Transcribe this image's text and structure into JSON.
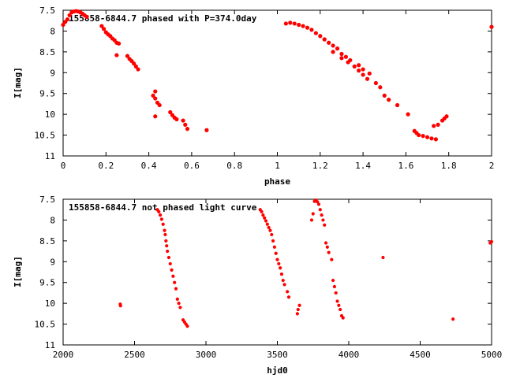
{
  "chart_data": [
    {
      "type": "scatter",
      "title": "155858-6844.7 phased with P=374.0day",
      "xlabel": "phase",
      "ylabel": "I[mag]",
      "xlim": [
        0,
        2
      ],
      "ylim": [
        7.5,
        11
      ],
      "y_inverted": true,
      "xticks": [
        "0",
        "0.2",
        "0.4",
        "0.6",
        "0.8",
        "1",
        "1.2",
        "1.4",
        "1.6",
        "1.8",
        "2"
      ],
      "yticks": [
        "7.5",
        "8",
        "8.5",
        "9",
        "9.5",
        "10",
        "10.5",
        "11"
      ],
      "marker_color": "#ff0000",
      "series": [
        {
          "x": [
            0.0,
            0.01,
            0.02,
            0.03,
            0.04,
            0.05,
            0.06,
            0.07,
            0.08,
            0.09,
            0.1,
            0.11,
            0.18,
            0.19,
            0.2,
            0.21,
            0.22,
            0.23,
            0.24,
            0.25,
            0.26,
            0.25,
            0.3,
            0.31,
            0.32,
            0.33,
            0.34,
            0.35,
            0.43,
            0.42,
            0.43,
            0.44,
            0.45,
            0.43,
            0.5,
            0.51,
            0.52,
            0.53,
            0.56,
            0.57,
            0.58,
            0.67,
            1.04,
            1.06,
            1.08,
            1.1,
            1.12,
            1.14,
            1.16,
            1.18,
            1.2,
            1.22,
            1.24,
            1.26,
            1.28,
            1.22,
            1.26,
            1.3,
            1.32,
            1.34,
            1.3,
            1.33,
            1.36,
            1.38,
            1.4,
            1.42,
            1.38,
            1.4,
            1.43,
            1.46,
            1.48,
            1.5,
            1.52,
            1.56,
            1.61,
            1.64,
            1.65,
            1.66,
            1.68,
            1.7,
            1.72,
            1.74,
            1.73,
            1.75,
            1.77,
            1.78,
            1.79,
            2.0
          ],
          "y": [
            7.85,
            7.78,
            7.72,
            7.62,
            7.55,
            7.53,
            7.52,
            7.53,
            7.55,
            7.58,
            7.62,
            7.66,
            7.88,
            7.95,
            8.03,
            8.08,
            8.12,
            8.18,
            8.22,
            8.28,
            8.3,
            8.58,
            8.6,
            8.67,
            8.72,
            8.78,
            8.85,
            8.92,
            9.45,
            9.55,
            9.62,
            9.72,
            9.78,
            10.05,
            9.95,
            10.02,
            10.08,
            10.12,
            10.15,
            10.25,
            10.35,
            10.38,
            7.82,
            7.8,
            7.82,
            7.85,
            7.88,
            7.92,
            7.97,
            8.05,
            8.12,
            8.2,
            8.28,
            8.35,
            8.42,
            8.2,
            8.5,
            8.55,
            8.62,
            8.7,
            8.65,
            8.75,
            8.85,
            8.95,
            9.05,
            9.15,
            8.82,
            8.92,
            9.02,
            9.25,
            9.35,
            9.55,
            9.65,
            9.78,
            10.0,
            10.4,
            10.45,
            10.5,
            10.52,
            10.55,
            10.58,
            10.6,
            10.28,
            10.25,
            10.15,
            10.1,
            10.05,
            7.9
          ]
        }
      ]
    },
    {
      "type": "scatter",
      "title": "155858-6844.7 not phased light curve",
      "xlabel": "hjd0",
      "ylabel": "I[mag]",
      "xlim": [
        2000,
        5000
      ],
      "ylim": [
        7.5,
        11
      ],
      "y_inverted": true,
      "xticks": [
        "2000",
        "2500",
        "3000",
        "3500",
        "4000",
        "4500",
        "5000"
      ],
      "yticks": [
        "7.5",
        "8",
        "8.5",
        "9",
        "9.5",
        "10",
        "10.5",
        "11"
      ],
      "marker_color": "#ff0000",
      "series": [
        {
          "x": [
            2400,
            2402,
            2660,
            2670,
            2680,
            2690,
            2700,
            2710,
            2715,
            2720,
            2725,
            2730,
            2740,
            2750,
            2760,
            2770,
            2780,
            2790,
            2800,
            2810,
            2820,
            2840,
            2850,
            2860,
            2870,
            3380,
            3390,
            3400,
            3410,
            3420,
            3430,
            3440,
            3450,
            3460,
            3470,
            3480,
            3490,
            3500,
            3510,
            3520,
            3530,
            3540,
            3550,
            3570,
            3580,
            3640,
            3645,
            3655,
            3740,
            3750,
            3760,
            3770,
            3780,
            3790,
            3800,
            3810,
            3820,
            3830,
            3840,
            3850,
            3860,
            3880,
            3890,
            3900,
            3910,
            3920,
            3930,
            3940,
            3950,
            3960,
            4240,
            4730,
            4990,
            5000
          ],
          "y": [
            10.02,
            10.06,
            7.75,
            7.8,
            7.88,
            7.98,
            8.1,
            8.25,
            8.35,
            8.5,
            8.62,
            8.75,
            8.9,
            9.05,
            9.2,
            9.35,
            9.5,
            9.65,
            9.9,
            10.0,
            10.1,
            10.4,
            10.45,
            10.5,
            10.55,
            7.75,
            7.8,
            7.88,
            7.95,
            8.02,
            8.1,
            8.18,
            8.25,
            8.35,
            8.5,
            8.65,
            8.8,
            8.95,
            9.05,
            9.15,
            9.3,
            9.45,
            9.55,
            9.72,
            9.85,
            10.25,
            10.15,
            10.05,
            8.0,
            7.85,
            7.55,
            7.52,
            7.56,
            7.62,
            7.75,
            7.88,
            8.0,
            8.12,
            8.55,
            8.65,
            8.78,
            8.95,
            9.45,
            9.6,
            9.75,
            9.95,
            10.05,
            10.15,
            10.3,
            10.35,
            8.9,
            10.38,
            8.55,
            8.52
          ]
        }
      ]
    }
  ]
}
